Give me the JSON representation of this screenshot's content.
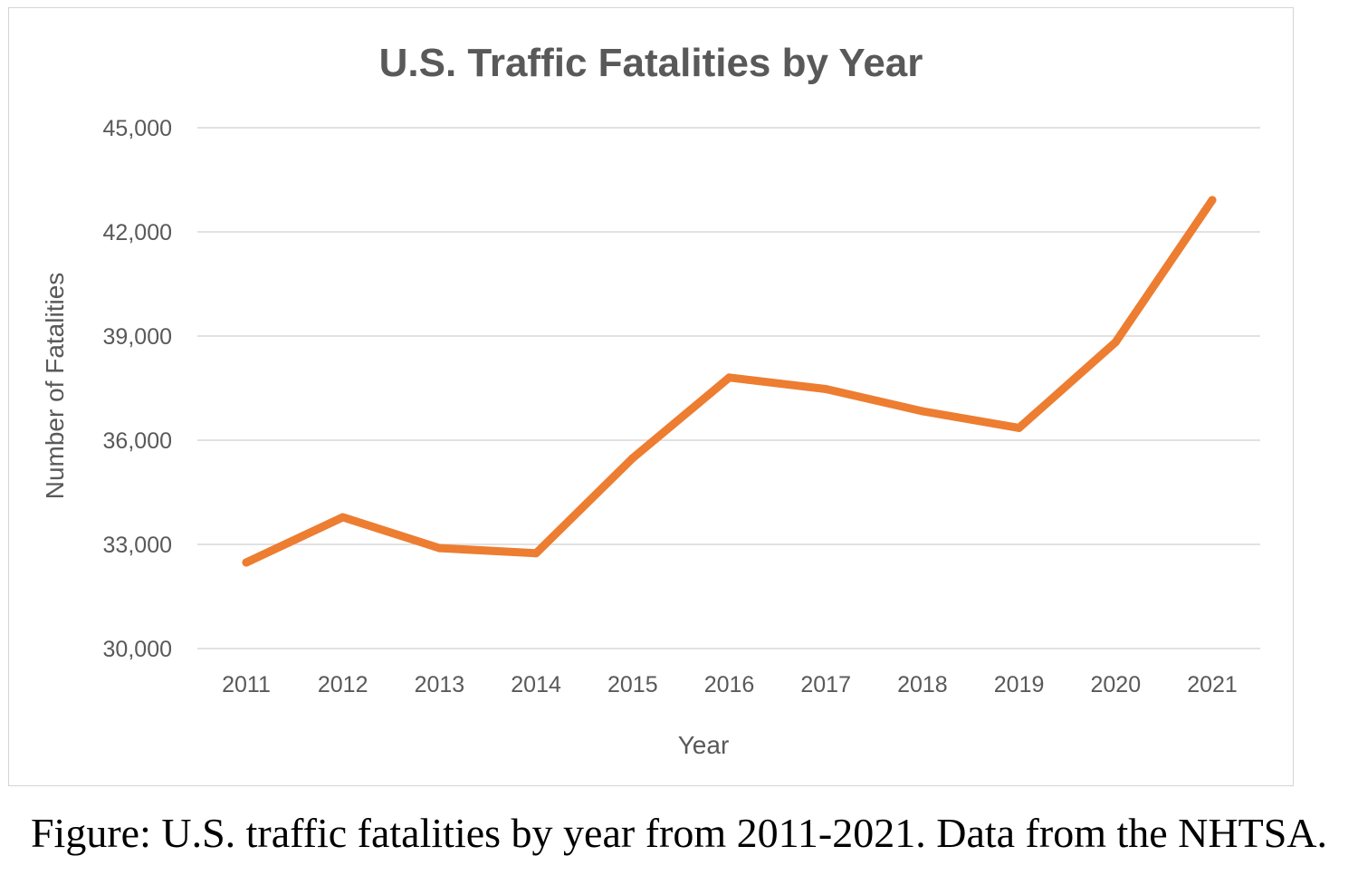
{
  "chart_data": {
    "type": "line",
    "title": "U.S. Traffic Fatalities by Year",
    "xlabel": "Year",
    "ylabel": "Number of Fatalities",
    "categories": [
      "2011",
      "2012",
      "2013",
      "2014",
      "2015",
      "2016",
      "2017",
      "2018",
      "2019",
      "2020",
      "2021"
    ],
    "series": [
      {
        "values": [
          32479,
          33782,
          32893,
          32744,
          35484,
          37806,
          37473,
          36835,
          36355,
          38824,
          42915
        ]
      }
    ],
    "ylim": [
      30000,
      45000
    ],
    "yticks": [
      30000,
      33000,
      36000,
      39000,
      42000,
      45000
    ],
    "ytick_labels": [
      "30,000",
      "33,000",
      "36,000",
      "39,000",
      "42,000",
      "45,000"
    ],
    "grid": true,
    "legend": "none",
    "line_color": "#ED7D31"
  },
  "caption": "Figure: U.S. traffic fatalities by year from 2011-2021. Data from the NHTSA."
}
